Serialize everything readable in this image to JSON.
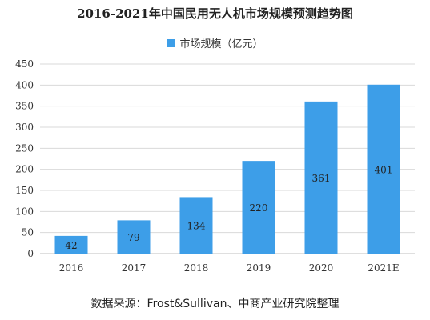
{
  "chart_data": {
    "type": "bar",
    "title": "2016-2021年中国民用无人机市场规模预测趋势图",
    "legend": "市场规模（亿元）",
    "categories": [
      "2016",
      "2017",
      "2018",
      "2019",
      "2020",
      "2021E"
    ],
    "values": [
      42,
      79,
      134,
      220,
      361,
      401
    ],
    "ylim": [
      0,
      450
    ],
    "yticks": [
      0,
      50,
      100,
      150,
      200,
      250,
      300,
      350,
      400,
      450
    ],
    "grid": true,
    "legend_position": "top-center",
    "bar_color": "#3d9ee8",
    "source": "数据来源：Frost&Sullivan、中商产业研究院整理"
  }
}
